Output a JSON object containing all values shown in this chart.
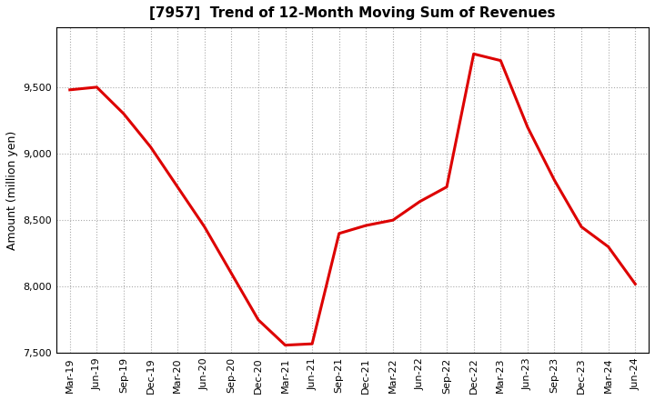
{
  "title": "[7957]  Trend of 12-Month Moving Sum of Revenues",
  "ylabel": "Amount (million yen)",
  "line_color": "#dd0000",
  "background_color": "#ffffff",
  "plot_bg_color": "#ffffff",
  "grid_color": "#aaaaaa",
  "ylim": [
    7500,
    9950
  ],
  "yticks": [
    7500,
    8000,
    8500,
    9000,
    9500
  ],
  "x_labels": [
    "Mar-19",
    "Jun-19",
    "Sep-19",
    "Dec-19",
    "Mar-20",
    "Jun-20",
    "Sep-20",
    "Dec-20",
    "Mar-21",
    "Jun-21",
    "Sep-21",
    "Dec-21",
    "Mar-22",
    "Jun-22",
    "Sep-22",
    "Dec-22",
    "Mar-23",
    "Jun-23",
    "Sep-23",
    "Dec-23",
    "Mar-24",
    "Jun-24"
  ],
  "data_points": [
    [
      0,
      9480
    ],
    [
      1,
      9500
    ],
    [
      2,
      9300
    ],
    [
      3,
      9050
    ],
    [
      4,
      8750
    ],
    [
      5,
      8450
    ],
    [
      6,
      8100
    ],
    [
      7,
      7750
    ],
    [
      8,
      7560
    ],
    [
      9,
      7570
    ],
    [
      10,
      8400
    ],
    [
      11,
      8460
    ],
    [
      12,
      8500
    ],
    [
      13,
      8640
    ],
    [
      14,
      8750
    ],
    [
      15,
      9750
    ],
    [
      16,
      9700
    ],
    [
      17,
      9200
    ],
    [
      18,
      8800
    ],
    [
      19,
      8450
    ],
    [
      20,
      8300
    ],
    [
      21,
      8020
    ]
  ]
}
